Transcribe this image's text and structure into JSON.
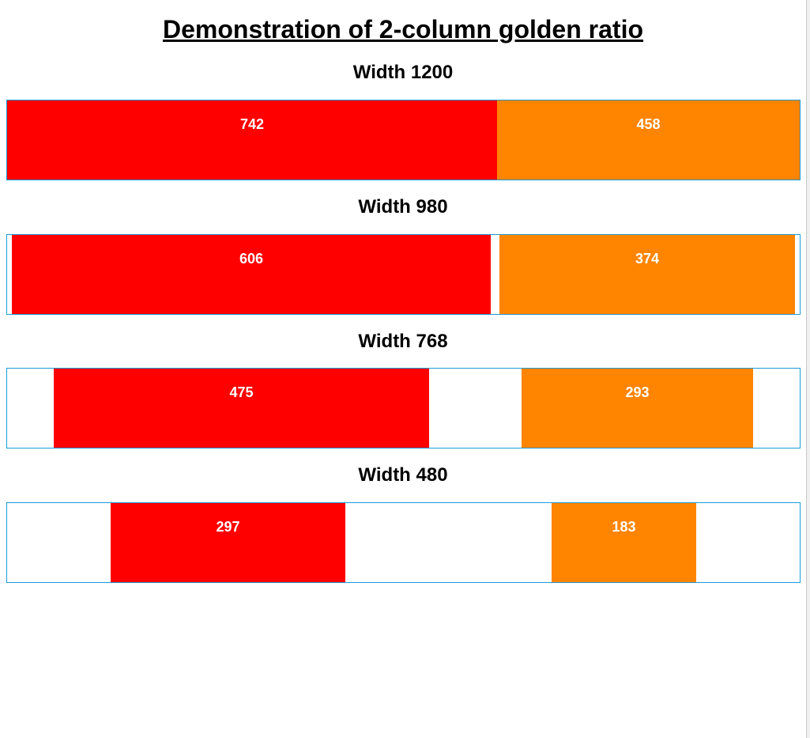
{
  "page": {
    "title": "Demonstration of 2-column golden ratio"
  },
  "demos": [
    {
      "heading": "Width 1200",
      "primary_label": "742",
      "secondary_label": "458"
    },
    {
      "heading": "Width 980",
      "primary_label": "606",
      "secondary_label": "374"
    },
    {
      "heading": "Width 768",
      "primary_label": "475",
      "secondary_label": "293"
    },
    {
      "heading": "Width 480",
      "primary_label": "297",
      "secondary_label": "183"
    }
  ],
  "colors": {
    "primary_column": "#ff0000",
    "secondary_column": "#ff8400",
    "frame_border": "#1a9bd7"
  }
}
